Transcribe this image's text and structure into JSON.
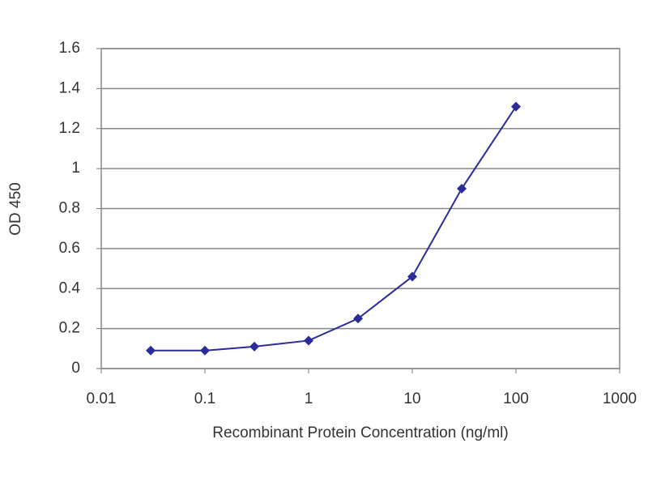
{
  "chart_data": {
    "type": "line",
    "ylabel": "OD 450",
    "xlabel": "Recombinant Protein Concentration (ng/ml)",
    "x": [
      0.03,
      0.1,
      0.3,
      1,
      3,
      10,
      30,
      100
    ],
    "series": [
      {
        "color": "#2b2b9a",
        "values": [
          0.09,
          0.09,
          0.11,
          0.14,
          0.25,
          0.46,
          0.9,
          1.31
        ]
      }
    ],
    "xscale": "log",
    "xlim": [
      0.01,
      1000
    ],
    "xticks": [
      0.01,
      0.1,
      1,
      10,
      100,
      1000
    ],
    "ylim": [
      0,
      1.6
    ],
    "yticks": [
      0,
      0.2,
      0.4,
      0.6,
      0.8,
      1,
      1.2,
      1.4,
      1.6
    ],
    "grid": true
  }
}
